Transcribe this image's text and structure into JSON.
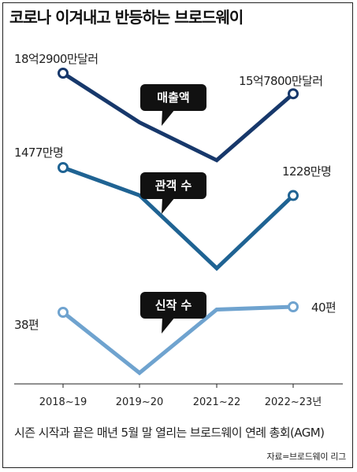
{
  "title": "코로나 이겨내고 반등하는 브로드웨이",
  "chart_data": {
    "type": "line",
    "categories": [
      "2018~19",
      "2019~20",
      "2021~22",
      "2022~23년"
    ],
    "series": [
      {
        "name": "매출액",
        "values": [
          1829000000,
          1230000000,
          770000000,
          1578000000
        ],
        "unit": "달러",
        "color": "#17386b",
        "start_label": "18억2900만달러",
        "end_label": "15억7800만달러"
      },
      {
        "name": "관객 수",
        "values": [
          14770000,
          12300000,
          5800000,
          12280000
        ],
        "unit": "명",
        "color": "#1f6393",
        "start_label": "1477만명",
        "end_label": "1228만명"
      },
      {
        "name": "신작 수",
        "values": [
          38,
          16,
          39,
          40
        ],
        "unit": "편",
        "color": "#6fa3cf",
        "start_label": "38편",
        "end_label": "40편"
      }
    ]
  },
  "footnote": "시즌 시작과 끝은 매년 5월 말 열리는 브로드웨이 연례 총회(AGM)",
  "source": "자료=브로드웨이 리그"
}
